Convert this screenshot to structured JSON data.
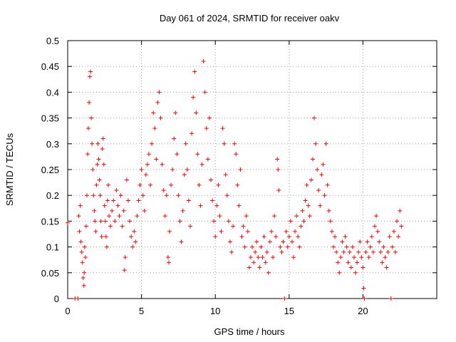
{
  "chart_data": {
    "type": "scatter",
    "title": "Day 061 of 2024, SRMTID for receiver oakv",
    "xlabel": "GPS time / hours",
    "ylabel": "SRMTID / TECUs",
    "xlim": [
      0,
      25
    ],
    "ylim": [
      0,
      0.5
    ],
    "xticks": [
      0,
      5,
      10,
      15,
      20
    ],
    "yticks": [
      0,
      0.05,
      0.1,
      0.15,
      0.2,
      0.25,
      0.3,
      0.35,
      0.4,
      0.45,
      0.5
    ],
    "xtick_labels": [
      "0",
      "5",
      "10",
      "15",
      "20"
    ],
    "ytick_labels": [
      "0",
      "0.05",
      "0.1",
      "0.15",
      "0.2",
      "0.25",
      "0.3",
      "0.35",
      "0.4",
      "0.45",
      "0.5"
    ],
    "grid": true,
    "marker": "+",
    "color": "#ff0000",
    "series": [
      {
        "name": "SRMTID",
        "points": [
          [
            0.0,
            0.147
          ],
          [
            0.5,
            0.0
          ],
          [
            0.7,
            0.0
          ],
          [
            0.75,
            0.16
          ],
          [
            0.8,
            0.13
          ],
          [
            0.85,
            0.18
          ],
          [
            0.9,
            0.11
          ],
          [
            0.95,
            0.09
          ],
          [
            1.0,
            0.07
          ],
          [
            1.05,
            0.04
          ],
          [
            1.1,
            0.025
          ],
          [
            1.12,
            0.05
          ],
          [
            1.15,
            0.1
          ],
          [
            1.2,
            0.08
          ],
          [
            1.25,
            0.14
          ],
          [
            1.3,
            0.2
          ],
          [
            1.35,
            0.28
          ],
          [
            1.4,
            0.33
          ],
          [
            1.45,
            0.38
          ],
          [
            1.5,
            0.43
          ],
          [
            1.55,
            0.44
          ],
          [
            1.6,
            0.35
          ],
          [
            1.65,
            0.3
          ],
          [
            1.7,
            0.25
          ],
          [
            1.75,
            0.2
          ],
          [
            1.8,
            0.17
          ],
          [
            1.85,
            0.15
          ],
          [
            1.9,
            0.13
          ],
          [
            1.95,
            0.22
          ],
          [
            2.0,
            0.26
          ],
          [
            2.05,
            0.3
          ],
          [
            2.1,
            0.27
          ],
          [
            2.15,
            0.23
          ],
          [
            2.2,
            0.2
          ],
          [
            2.25,
            0.15
          ],
          [
            2.3,
            0.12
          ],
          [
            2.35,
            0.29
          ],
          [
            2.4,
            0.31
          ],
          [
            2.45,
            0.26
          ],
          [
            2.5,
            0.18
          ],
          [
            2.55,
            0.15
          ],
          [
            2.6,
            0.12
          ],
          [
            2.65,
            0.1
          ],
          [
            2.7,
            0.19
          ],
          [
            2.75,
            0.22
          ],
          [
            2.8,
            0.16
          ],
          [
            2.9,
            0.14
          ],
          [
            3.0,
            0.17
          ],
          [
            3.1,
            0.19
          ],
          [
            3.2,
            0.15
          ],
          [
            3.3,
            0.21
          ],
          [
            3.4,
            0.18
          ],
          [
            3.5,
            0.16
          ],
          [
            3.6,
            0.2
          ],
          [
            3.7,
            0.14
          ],
          [
            3.8,
            0.17
          ],
          [
            3.85,
            0.055
          ],
          [
            3.9,
            0.08
          ],
          [
            4.0,
            0.23
          ],
          [
            4.1,
            0.19
          ],
          [
            4.2,
            0.15
          ],
          [
            4.3,
            0.12
          ],
          [
            4.4,
            0.1
          ],
          [
            4.5,
            0.13
          ],
          [
            4.6,
            0.11
          ],
          [
            4.7,
            0.16
          ],
          [
            4.8,
            0.19
          ],
          [
            4.9,
            0.22
          ],
          [
            5.0,
            0.25
          ],
          [
            5.1,
            0.2
          ],
          [
            5.2,
            0.17
          ],
          [
            5.3,
            0.24
          ],
          [
            5.4,
            0.26
          ],
          [
            5.5,
            0.28
          ],
          [
            5.6,
            0.22
          ],
          [
            5.7,
            0.3
          ],
          [
            5.8,
            0.36
          ],
          [
            5.9,
            0.33
          ],
          [
            6.0,
            0.27
          ],
          [
            6.1,
            0.38
          ],
          [
            6.2,
            0.4
          ],
          [
            6.3,
            0.35
          ],
          [
            6.4,
            0.26
          ],
          [
            6.5,
            0.21
          ],
          [
            6.6,
            0.16
          ],
          [
            6.7,
            0.2
          ],
          [
            6.8,
            0.08
          ],
          [
            6.85,
            0.07
          ],
          [
            6.9,
            0.13
          ],
          [
            7.0,
            0.22
          ],
          [
            7.1,
            0.25
          ],
          [
            7.2,
            0.31
          ],
          [
            7.3,
            0.36
          ],
          [
            7.4,
            0.28
          ],
          [
            7.5,
            0.2
          ],
          [
            7.6,
            0.15
          ],
          [
            7.7,
            0.11
          ],
          [
            7.8,
            0.17
          ],
          [
            7.9,
            0.24
          ],
          [
            8.0,
            0.3
          ],
          [
            8.1,
            0.25
          ],
          [
            8.2,
            0.19
          ],
          [
            8.3,
            0.14
          ],
          [
            8.4,
            0.32
          ],
          [
            8.5,
            0.39
          ],
          [
            8.6,
            0.44
          ],
          [
            8.7,
            0.36
          ],
          [
            8.8,
            0.28
          ],
          [
            8.9,
            0.22
          ],
          [
            9.0,
            0.18
          ],
          [
            9.1,
            0.26
          ],
          [
            9.2,
            0.46
          ],
          [
            9.3,
            0.4
          ],
          [
            9.4,
            0.33
          ],
          [
            9.5,
            0.27
          ],
          [
            9.6,
            0.35
          ],
          [
            9.7,
            0.23
          ],
          [
            9.8,
            0.19
          ],
          [
            9.9,
            0.15
          ],
          [
            10.0,
            0.12
          ],
          [
            10.1,
            0.18
          ],
          [
            10.2,
            0.22
          ],
          [
            10.3,
            0.16
          ],
          [
            10.4,
            0.13
          ],
          [
            10.5,
            0.33
          ],
          [
            10.6,
            0.3
          ],
          [
            10.7,
            0.24
          ],
          [
            10.8,
            0.2
          ],
          [
            10.9,
            0.15
          ],
          [
            11.0,
            0.11
          ],
          [
            11.1,
            0.09
          ],
          [
            11.2,
            0.14
          ],
          [
            11.3,
            0.3
          ],
          [
            11.4,
            0.28
          ],
          [
            11.5,
            0.22
          ],
          [
            11.6,
            0.18
          ],
          [
            11.7,
            0.25
          ],
          [
            11.8,
            0.12
          ],
          [
            11.9,
            0.14
          ],
          [
            12.0,
            0.1
          ],
          [
            12.1,
            0.16
          ],
          [
            12.2,
            0.13
          ],
          [
            12.3,
            0.06
          ],
          [
            12.4,
            0.08
          ],
          [
            12.5,
            0.1
          ],
          [
            12.6,
            0.07
          ],
          [
            12.7,
            0.09
          ],
          [
            12.8,
            0.11
          ],
          [
            12.9,
            0.08
          ],
          [
            13.0,
            0.06
          ],
          [
            13.1,
            0.1
          ],
          [
            13.2,
            0.08
          ],
          [
            13.3,
            0.12
          ],
          [
            13.4,
            0.07
          ],
          [
            13.5,
            0.09
          ],
          [
            13.6,
            0.05
          ],
          [
            13.7,
            0.11
          ],
          [
            13.8,
            0.13
          ],
          [
            13.9,
            0.08
          ],
          [
            14.0,
            0.16
          ],
          [
            14.1,
            0.12
          ],
          [
            14.2,
            0.27
          ],
          [
            14.25,
            0.25
          ],
          [
            14.3,
            0.21
          ],
          [
            14.4,
            0.1
          ],
          [
            14.5,
            0.09
          ],
          [
            14.6,
            0.11
          ],
          [
            14.7,
            0.0
          ],
          [
            14.8,
            0.13
          ],
          [
            14.9,
            0.1
          ],
          [
            15.0,
            0.12
          ],
          [
            15.1,
            0.15
          ],
          [
            15.2,
            0.11
          ],
          [
            15.3,
            0.08
          ],
          [
            15.4,
            0.13
          ],
          [
            15.5,
            0.16
          ],
          [
            15.6,
            0.12
          ],
          [
            15.7,
            0.1
          ],
          [
            15.8,
            0.14
          ],
          [
            15.9,
            0.17
          ],
          [
            16.0,
            0.15
          ],
          [
            16.1,
            0.19
          ],
          [
            16.2,
            0.22
          ],
          [
            16.3,
            0.18
          ],
          [
            16.4,
            0.16
          ],
          [
            16.5,
            0.23
          ],
          [
            16.6,
            0.27
          ],
          [
            16.7,
            0.35
          ],
          [
            16.8,
            0.3
          ],
          [
            16.9,
            0.25
          ],
          [
            17.0,
            0.21
          ],
          [
            17.1,
            0.18
          ],
          [
            17.2,
            0.24
          ],
          [
            17.3,
            0.26
          ],
          [
            17.4,
            0.2
          ],
          [
            17.5,
            0.3
          ],
          [
            17.6,
            0.22
          ],
          [
            17.7,
            0.17
          ],
          [
            17.8,
            0.15
          ],
          [
            17.9,
            0.13
          ],
          [
            18.0,
            0.1
          ],
          [
            18.1,
            0.12
          ],
          [
            18.2,
            0.09
          ],
          [
            18.3,
            0.07
          ],
          [
            18.4,
            0.05
          ],
          [
            18.5,
            0.08
          ],
          [
            18.6,
            0.11
          ],
          [
            18.7,
            0.09
          ],
          [
            18.8,
            0.12
          ],
          [
            18.9,
            0.1
          ],
          [
            19.0,
            0.07
          ],
          [
            19.1,
            0.09
          ],
          [
            19.2,
            0.06
          ],
          [
            19.3,
            0.1
          ],
          [
            19.4,
            0.08
          ],
          [
            19.5,
            0.05
          ],
          [
            19.6,
            0.07
          ],
          [
            19.7,
            0.09
          ],
          [
            19.8,
            0.11
          ],
          [
            19.9,
            0.08
          ],
          [
            20.0,
            0.06
          ],
          [
            20.05,
            0.02
          ],
          [
            20.1,
            0.0
          ],
          [
            20.2,
            0.09
          ],
          [
            20.3,
            0.11
          ],
          [
            20.4,
            0.08
          ],
          [
            20.5,
            0.1
          ],
          [
            20.6,
            0.12
          ],
          [
            20.7,
            0.09
          ],
          [
            20.8,
            0.14
          ],
          [
            20.9,
            0.16
          ],
          [
            21.0,
            0.13
          ],
          [
            21.1,
            0.11
          ],
          [
            21.2,
            0.09
          ],
          [
            21.3,
            0.07
          ],
          [
            21.4,
            0.1
          ],
          [
            21.5,
            0.08
          ],
          [
            21.6,
            0.06
          ],
          [
            21.7,
            0.09
          ],
          [
            21.8,
            0.12
          ],
          [
            21.9,
            0.0
          ],
          [
            22.0,
            0.1
          ],
          [
            22.1,
            0.13
          ],
          [
            22.2,
            0.09
          ],
          [
            22.3,
            0.15
          ],
          [
            22.4,
            0.12
          ],
          [
            22.5,
            0.17
          ],
          [
            22.6,
            0.14
          ]
        ]
      }
    ]
  }
}
